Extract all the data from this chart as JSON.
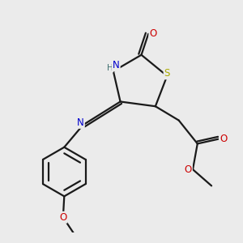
{
  "bg_color": "#ebebeb",
  "bond_color": "#1a1a1a",
  "atom_colors": {
    "N": "#0000cc",
    "S": "#aaaa00",
    "O": "#cc0000",
    "H": "#407070",
    "C": "#1a1a1a"
  },
  "lw": 1.6
}
